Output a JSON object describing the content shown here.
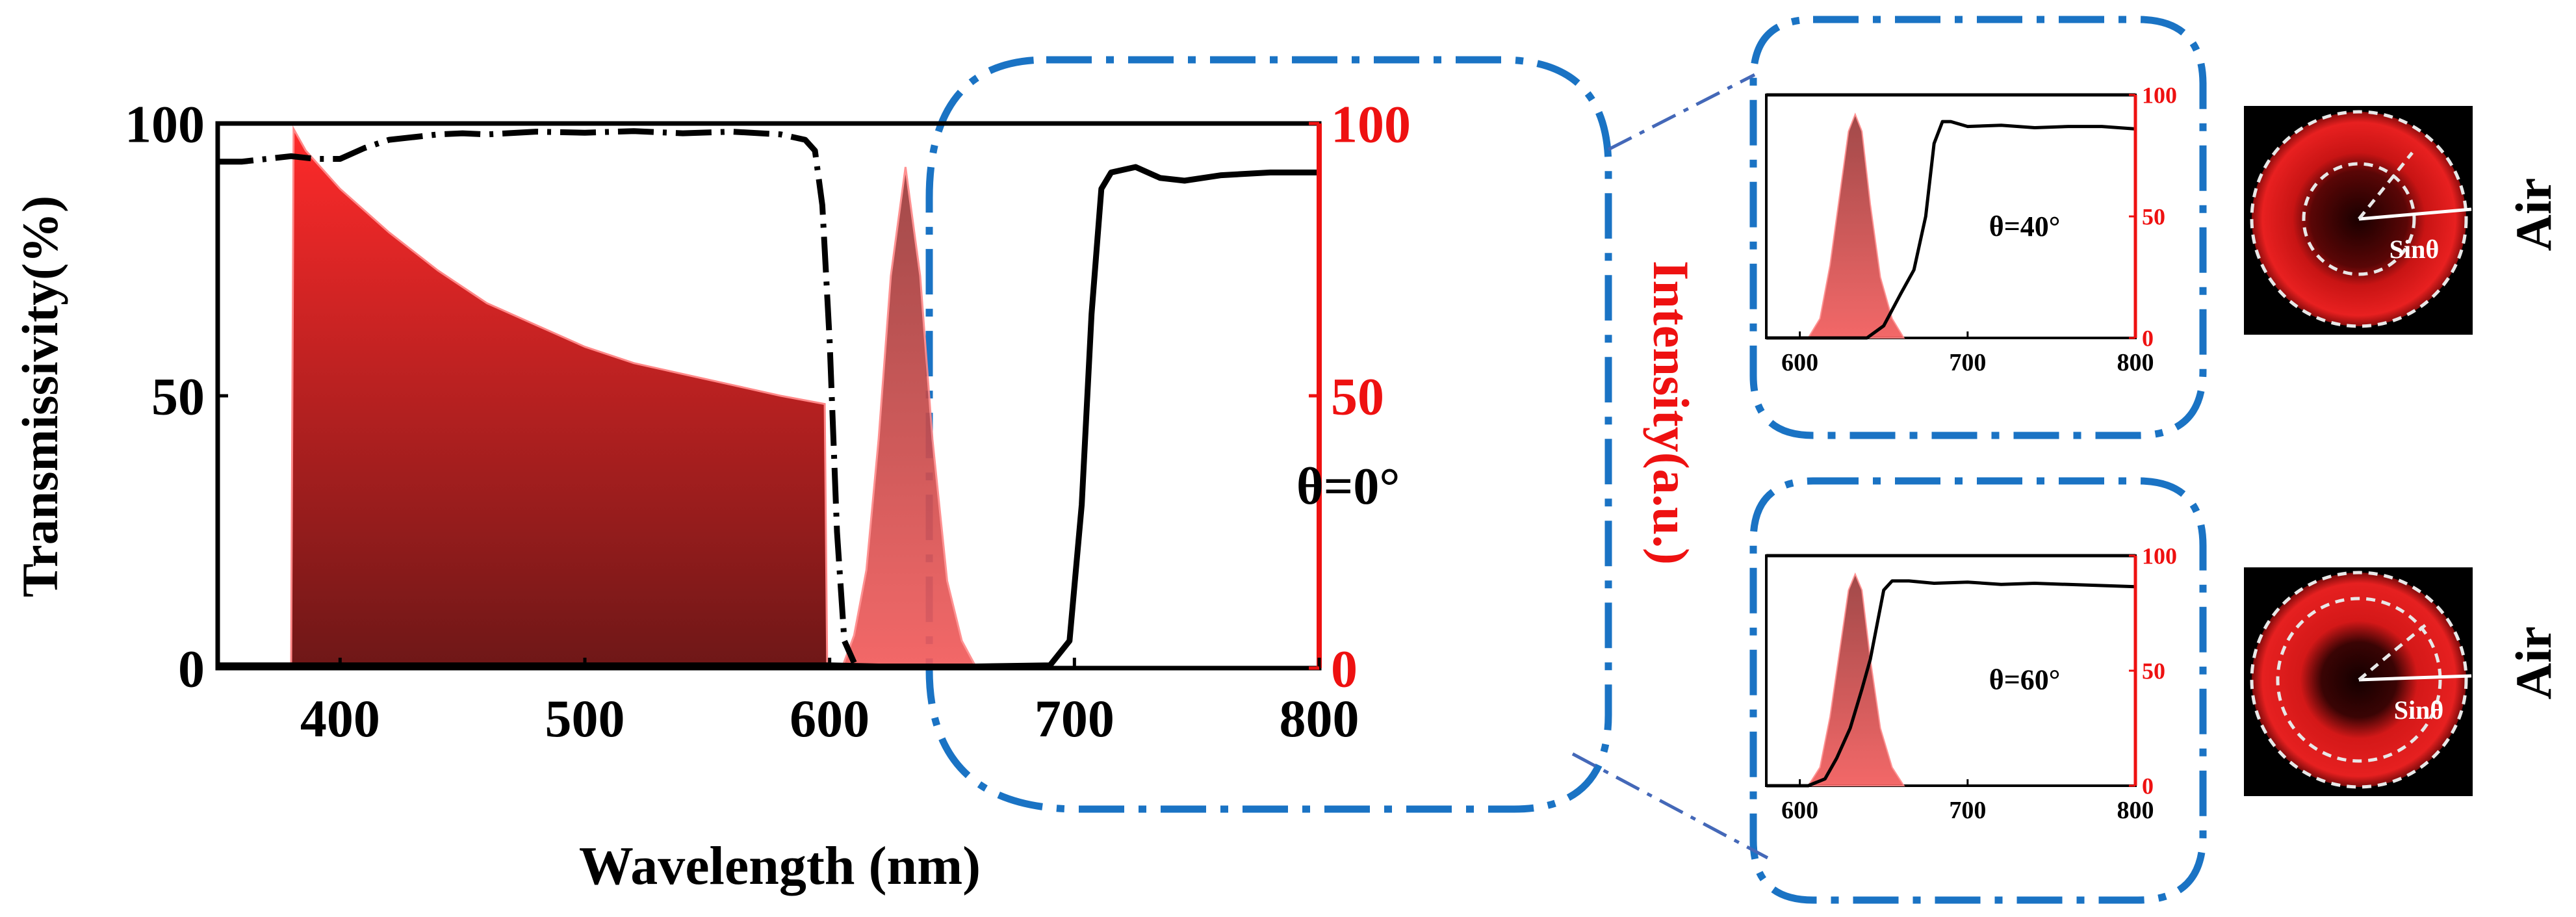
{
  "colors": {
    "axis": "#000000",
    "intensity_axis": "#ee1111",
    "dash_box": "#1a73c4",
    "connector": "#4468b8",
    "led_fill_top": "#ff2a2a",
    "led_fill_bottom": "#6e1717",
    "laser_fill": "#f25c5c",
    "laser_fill_dark": "#9a3a3a"
  },
  "chart_data": [
    {
      "id": "main",
      "type": "line+area",
      "xlabel": "Wavelength (nm)",
      "ylabel_left": "Transmissivity(%)",
      "ylabel_right": "Intensity(a.u.)",
      "xlim": [
        350,
        800
      ],
      "ylim": [
        0,
        100
      ],
      "xticks": [
        "400",
        "500",
        "600",
        "700",
        "800"
      ],
      "yticks_left": [
        "0",
        "50",
        "100"
      ],
      "yticks_right": [
        "0",
        "50",
        "100"
      ],
      "annotation": "θ=0°",
      "series": [
        {
          "name": "transmissivity_shortpass",
          "kind": "line",
          "style": "dash-dot",
          "x": [
            350,
            360,
            370,
            380,
            390,
            400,
            410,
            420,
            430,
            440,
            450,
            460,
            480,
            500,
            520,
            540,
            560,
            580,
            590,
            594,
            597,
            600,
            603,
            606,
            610
          ],
          "y": [
            93,
            93,
            93.5,
            94,
            93.5,
            93.5,
            95.5,
            97,
            97.5,
            98,
            98.2,
            98,
            98.5,
            98.3,
            98.6,
            98.2,
            98.5,
            98,
            97,
            95,
            85,
            60,
            25,
            5,
            1
          ]
        },
        {
          "name": "transmissivity_longpass",
          "kind": "line",
          "style": "solid",
          "x": [
            350,
            600,
            620,
            660,
            690,
            698,
            703,
            707,
            711,
            715,
            725,
            735,
            745,
            760,
            780,
            800
          ],
          "y": [
            0.5,
            0.5,
            0.3,
            0.3,
            0.5,
            5,
            30,
            65,
            88,
            91,
            92,
            90,
            89.5,
            90.5,
            91,
            91
          ]
        },
        {
          "name": "led_intensity",
          "kind": "area",
          "x": [
            380,
            381,
            386,
            400,
            420,
            440,
            460,
            480,
            500,
            520,
            540,
            560,
            580,
            598,
            599
          ],
          "y": [
            0,
            99,
            95,
            88,
            80,
            73,
            67,
            63,
            59,
            56,
            54,
            52,
            50,
            48.5,
            0
          ]
        },
        {
          "name": "laser_intensity",
          "kind": "area",
          "x": [
            605,
            610,
            615,
            620,
            625,
            631,
            637,
            642,
            648,
            654,
            660
          ],
          "y": [
            0,
            6,
            18,
            42,
            72,
            92,
            72,
            42,
            16,
            5,
            0
          ]
        }
      ]
    },
    {
      "id": "inset_40",
      "type": "line+area",
      "xlim": [
        580,
        800
      ],
      "ylim": [
        0,
        100
      ],
      "xticks": [
        "600",
        "700",
        "800"
      ],
      "yticks_right": [
        "0",
        "50",
        "100"
      ],
      "annotation": "θ=40°",
      "series": [
        {
          "name": "transmissivity_top",
          "kind": "line",
          "x": [
            580,
            800
          ],
          "y": [
            100,
            100
          ]
        },
        {
          "name": "transmissivity",
          "kind": "line",
          "x": [
            580,
            640,
            650,
            660,
            668,
            675,
            680,
            685,
            690,
            700,
            720,
            740,
            760,
            780,
            800
          ],
          "y": [
            0,
            0,
            5,
            18,
            28,
            50,
            80,
            89,
            89,
            87,
            87.5,
            86.5,
            87,
            87,
            86
          ]
        },
        {
          "name": "laser_intensity",
          "kind": "area",
          "x": [
            605,
            612,
            618,
            624,
            629,
            633,
            637,
            642,
            648,
            655,
            662
          ],
          "y": [
            0,
            8,
            30,
            60,
            85,
            92,
            85,
            55,
            25,
            8,
            0
          ]
        }
      ]
    },
    {
      "id": "inset_60",
      "type": "line+area",
      "xlim": [
        580,
        800
      ],
      "ylim": [
        0,
        100
      ],
      "xticks": [
        "600",
        "700",
        "800"
      ],
      "yticks_right": [
        "0",
        "50",
        "100"
      ],
      "annotation": "θ=60°",
      "series": [
        {
          "name": "transmissivity_top",
          "kind": "line",
          "x": [
            580,
            800
          ],
          "y": [
            100,
            100
          ]
        },
        {
          "name": "transmissivity",
          "kind": "line",
          "x": [
            580,
            605,
            615,
            622,
            630,
            637,
            642,
            646,
            650,
            655,
            665,
            680,
            700,
            720,
            740,
            760,
            780,
            800
          ],
          "y": [
            0,
            0,
            3,
            12,
            25,
            42,
            55,
            70,
            85,
            89,
            89,
            88,
            88.5,
            87.5,
            88,
            87.5,
            87,
            86.5
          ]
        },
        {
          "name": "laser_intensity",
          "kind": "area",
          "x": [
            605,
            612,
            618,
            624,
            629,
            633,
            637,
            642,
            648,
            655,
            662
          ],
          "y": [
            0,
            8,
            30,
            60,
            85,
            92,
            85,
            55,
            25,
            8,
            0
          ]
        }
      ]
    }
  ],
  "beam_images": [
    {
      "medium_label": "Air",
      "circle_label": "Sinθ",
      "angle": "40"
    },
    {
      "medium_label": "Air",
      "circle_label": "Sinθ",
      "angle": "60"
    }
  ]
}
